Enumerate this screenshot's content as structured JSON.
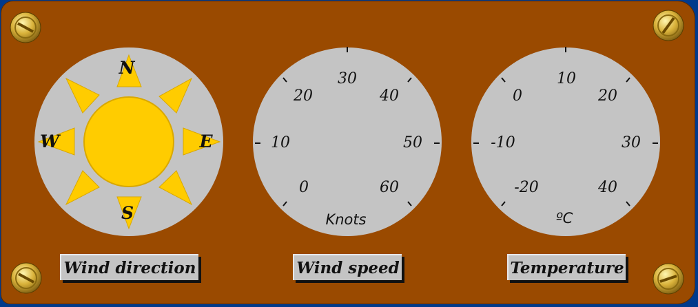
{
  "compass": {
    "north": "N",
    "south": "S",
    "east": "E",
    "west": "W"
  },
  "wind_speed": {
    "ticks": [
      "0",
      "10",
      "20",
      "30",
      "40",
      "50",
      "60"
    ],
    "unit": "Knots"
  },
  "temperature": {
    "ticks": [
      "-20",
      "-10",
      "0",
      "10",
      "20",
      "30",
      "40"
    ],
    "unit": "ºC"
  },
  "labels": {
    "wind_direction": "Wind direction",
    "wind_speed": "Wind speed",
    "temperature": "Temperature"
  },
  "colors": {
    "panel": "#9a4a00",
    "dial_face": "#c4c4c4",
    "sun": "#ffcc00",
    "background": "#003a8c"
  },
  "icons": [
    "screw-icon",
    "sun-icon"
  ]
}
